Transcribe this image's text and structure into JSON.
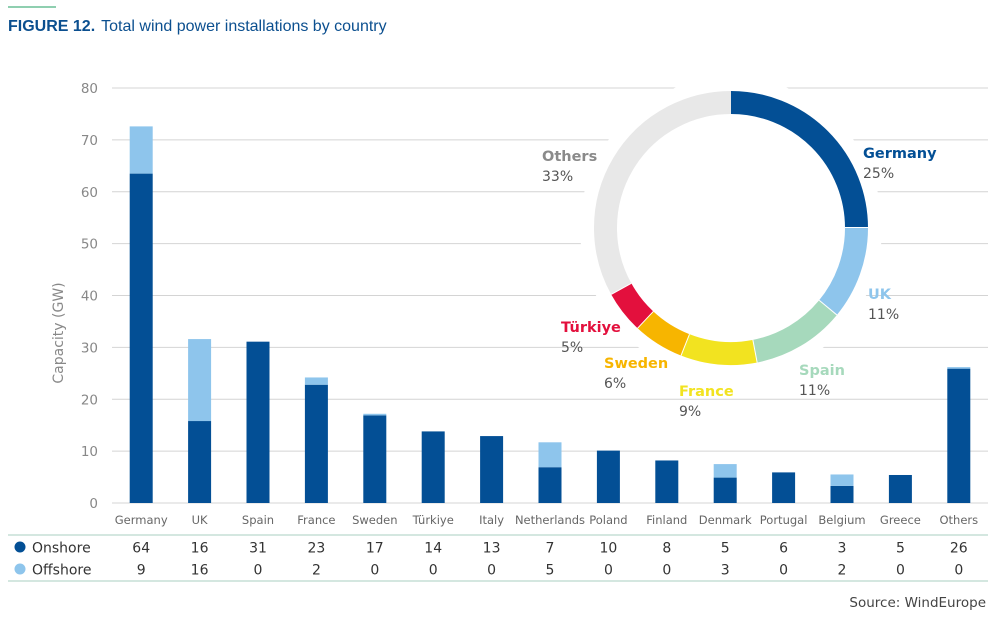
{
  "figure": {
    "label": "FIGURE 12.",
    "title": "Total wind power installations by country",
    "source": "Source: WindEurope"
  },
  "colors": {
    "onshore": "#034f95",
    "offshore": "#8ec5ec",
    "grid": "#d4d4d4",
    "axis_text": "#777777",
    "title": "#0b4f8f"
  },
  "chart_data": [
    {
      "type": "bar",
      "stacked": true,
      "categories": [
        "Germany",
        "UK",
        "Spain",
        "France",
        "Sweden",
        "Türkiye",
        "Italy",
        "Netherlands",
        "Poland",
        "Finland",
        "Denmark",
        "Portugal",
        "Belgium",
        "Greece",
        "Others"
      ],
      "series": [
        {
          "name": "Onshore",
          "color": "#034f95",
          "values": [
            64,
            16,
            31,
            23,
            17,
            14,
            13,
            7,
            10,
            8,
            5,
            6,
            3,
            5,
            26
          ],
          "bar_values": [
            63.5,
            15.8,
            31.1,
            22.8,
            16.9,
            13.8,
            12.9,
            6.9,
            10.1,
            8.2,
            4.9,
            5.9,
            3.3,
            5.4,
            25.9
          ]
        },
        {
          "name": "Offshore",
          "color": "#8ec5ec",
          "values": [
            9,
            16,
            0,
            2,
            0,
            0,
            0,
            5,
            0,
            0,
            3,
            0,
            2,
            0,
            0
          ],
          "bar_values": [
            9.1,
            15.8,
            0,
            1.4,
            0.3,
            0,
            0,
            4.8,
            0,
            0,
            2.6,
            0,
            2.2,
            0,
            0.3
          ]
        }
      ],
      "ylabel": "Capacity (GW)",
      "ylim": [
        0,
        80
      ],
      "yticks": [
        0,
        10,
        20,
        30,
        40,
        50,
        60,
        70,
        80
      ],
      "grid": true,
      "table_below": true
    },
    {
      "type": "pie",
      "donut": true,
      "labels": [
        "Germany",
        "UK",
        "Spain",
        "France",
        "Sweden",
        "Türkiye",
        "Others"
      ],
      "percent_labels": [
        "25%",
        "11%",
        "11%",
        "9%",
        "6%",
        "5%",
        "33%"
      ],
      "values": [
        25,
        11,
        11,
        9,
        6,
        5,
        33
      ],
      "colors": [
        "#034f95",
        "#8ec5ec",
        "#a6d9bc",
        "#f2e320",
        "#f7b500",
        "#e3103d",
        "#e8e8e8"
      ],
      "label_colors": [
        "#034f95",
        "#8ec5ec",
        "#a6d9bc",
        "#f2e320",
        "#f7b500",
        "#e3103d",
        "#8a8a8a"
      ]
    }
  ]
}
